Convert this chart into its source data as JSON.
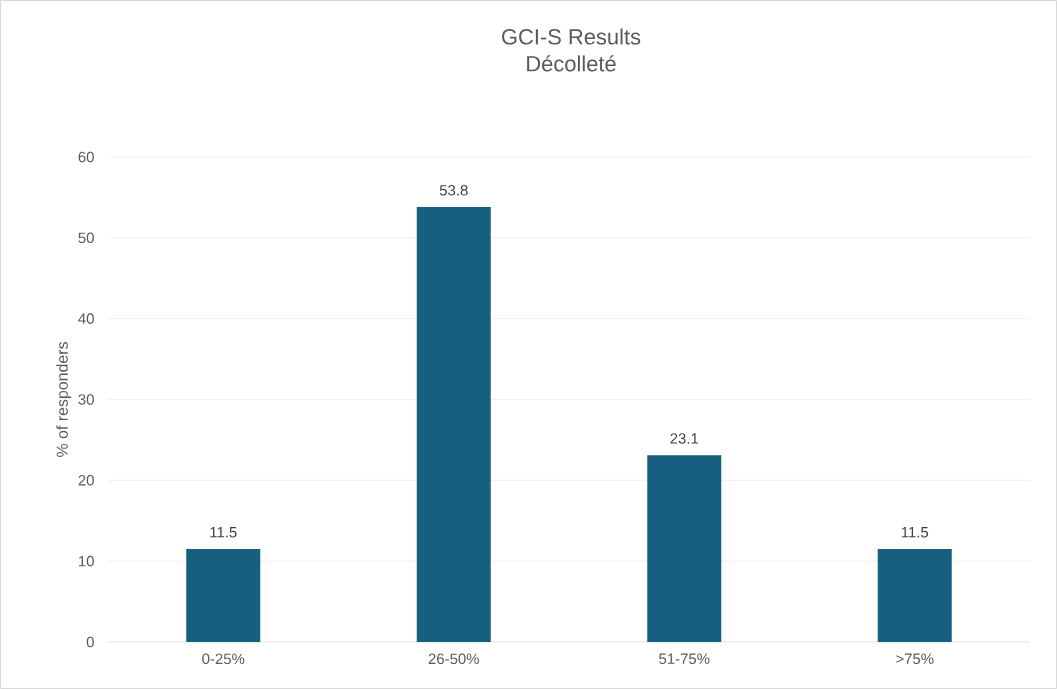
{
  "chart_data": {
    "type": "bar",
    "title": "GCI-S  Results",
    "subtitle": "Décolleté",
    "ylabel": "% of responders",
    "categories": [
      "0-25%",
      "26-50%",
      "51-75%",
      ">75%"
    ],
    "values": [
      11.5,
      53.8,
      23.1,
      11.5
    ],
    "color": "#175f7f",
    "ylim": [
      0,
      60
    ],
    "yticks": [
      0,
      10,
      20,
      30,
      40,
      50,
      60
    ],
    "grid": "y",
    "data_labels": true
  }
}
